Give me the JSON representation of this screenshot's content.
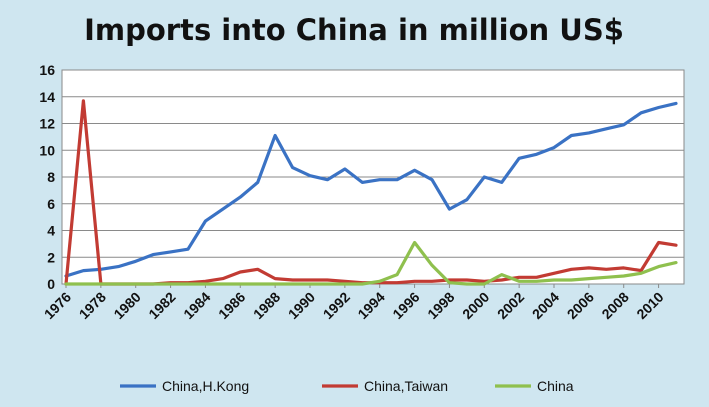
{
  "chart_data": {
    "type": "line",
    "title": "Imports into China in million US$",
    "xlabel": "",
    "ylabel": "",
    "x": [
      1976,
      1977,
      1978,
      1979,
      1980,
      1981,
      1982,
      1983,
      1984,
      1985,
      1986,
      1987,
      1988,
      1989,
      1990,
      1991,
      1992,
      1993,
      1994,
      1995,
      1996,
      1997,
      1998,
      1999,
      2000,
      2001,
      2002,
      2003,
      2004,
      2005,
      2006,
      2007,
      2008,
      2009,
      2010,
      2011
    ],
    "x_ticks": [
      "1976",
      "1978",
      "1980",
      "1982",
      "1984",
      "1986",
      "1988",
      "1990",
      "1992",
      "1994",
      "1996",
      "1998",
      "2000",
      "2002",
      "2004",
      "2006",
      "2008",
      "2010"
    ],
    "xlim": [
      1976,
      2011
    ],
    "ylim": [
      0,
      16
    ],
    "y_ticks": [
      "0",
      "2",
      "4",
      "6",
      "8",
      "10",
      "12",
      "14",
      "16"
    ],
    "grid": true,
    "legend_position": "bottom",
    "series": [
      {
        "name": "China,H.Kong",
        "color": "#3a72c4",
        "values": [
          0.6,
          1.0,
          1.1,
          1.3,
          1.7,
          2.2,
          2.4,
          2.6,
          4.7,
          5.6,
          6.5,
          7.6,
          11.1,
          8.7,
          8.1,
          7.8,
          8.6,
          7.6,
          7.8,
          7.8,
          8.5,
          7.8,
          5.6,
          6.3,
          8.0,
          7.6,
          9.4,
          9.7,
          10.2,
          11.1,
          11.3,
          11.6,
          11.9,
          12.8,
          13.2,
          13.5
        ]
      },
      {
        "name": "China,Taiwan",
        "color": "#c23b33",
        "values": [
          0.0,
          13.7,
          0.0,
          0.0,
          0.0,
          0.0,
          0.1,
          0.1,
          0.2,
          0.4,
          0.9,
          1.1,
          0.4,
          0.3,
          0.3,
          0.3,
          0.2,
          0.1,
          0.1,
          0.1,
          0.2,
          0.2,
          0.3,
          0.3,
          0.2,
          0.3,
          0.5,
          0.5,
          0.8,
          1.1,
          1.2,
          1.1,
          1.2,
          1.0,
          3.1,
          2.9
        ]
      },
      {
        "name": "China",
        "color": "#8fc04e",
        "values": [
          0.0,
          0.0,
          0.0,
          0.0,
          0.0,
          0.0,
          0.0,
          0.0,
          0.0,
          0.0,
          0.0,
          0.0,
          0.0,
          0.0,
          0.0,
          0.0,
          0.0,
          0.0,
          0.2,
          0.7,
          3.1,
          1.4,
          0.1,
          0.0,
          0.0,
          0.7,
          0.2,
          0.2,
          0.3,
          0.3,
          0.4,
          0.5,
          0.6,
          0.8,
          1.3,
          1.6
        ]
      }
    ]
  }
}
